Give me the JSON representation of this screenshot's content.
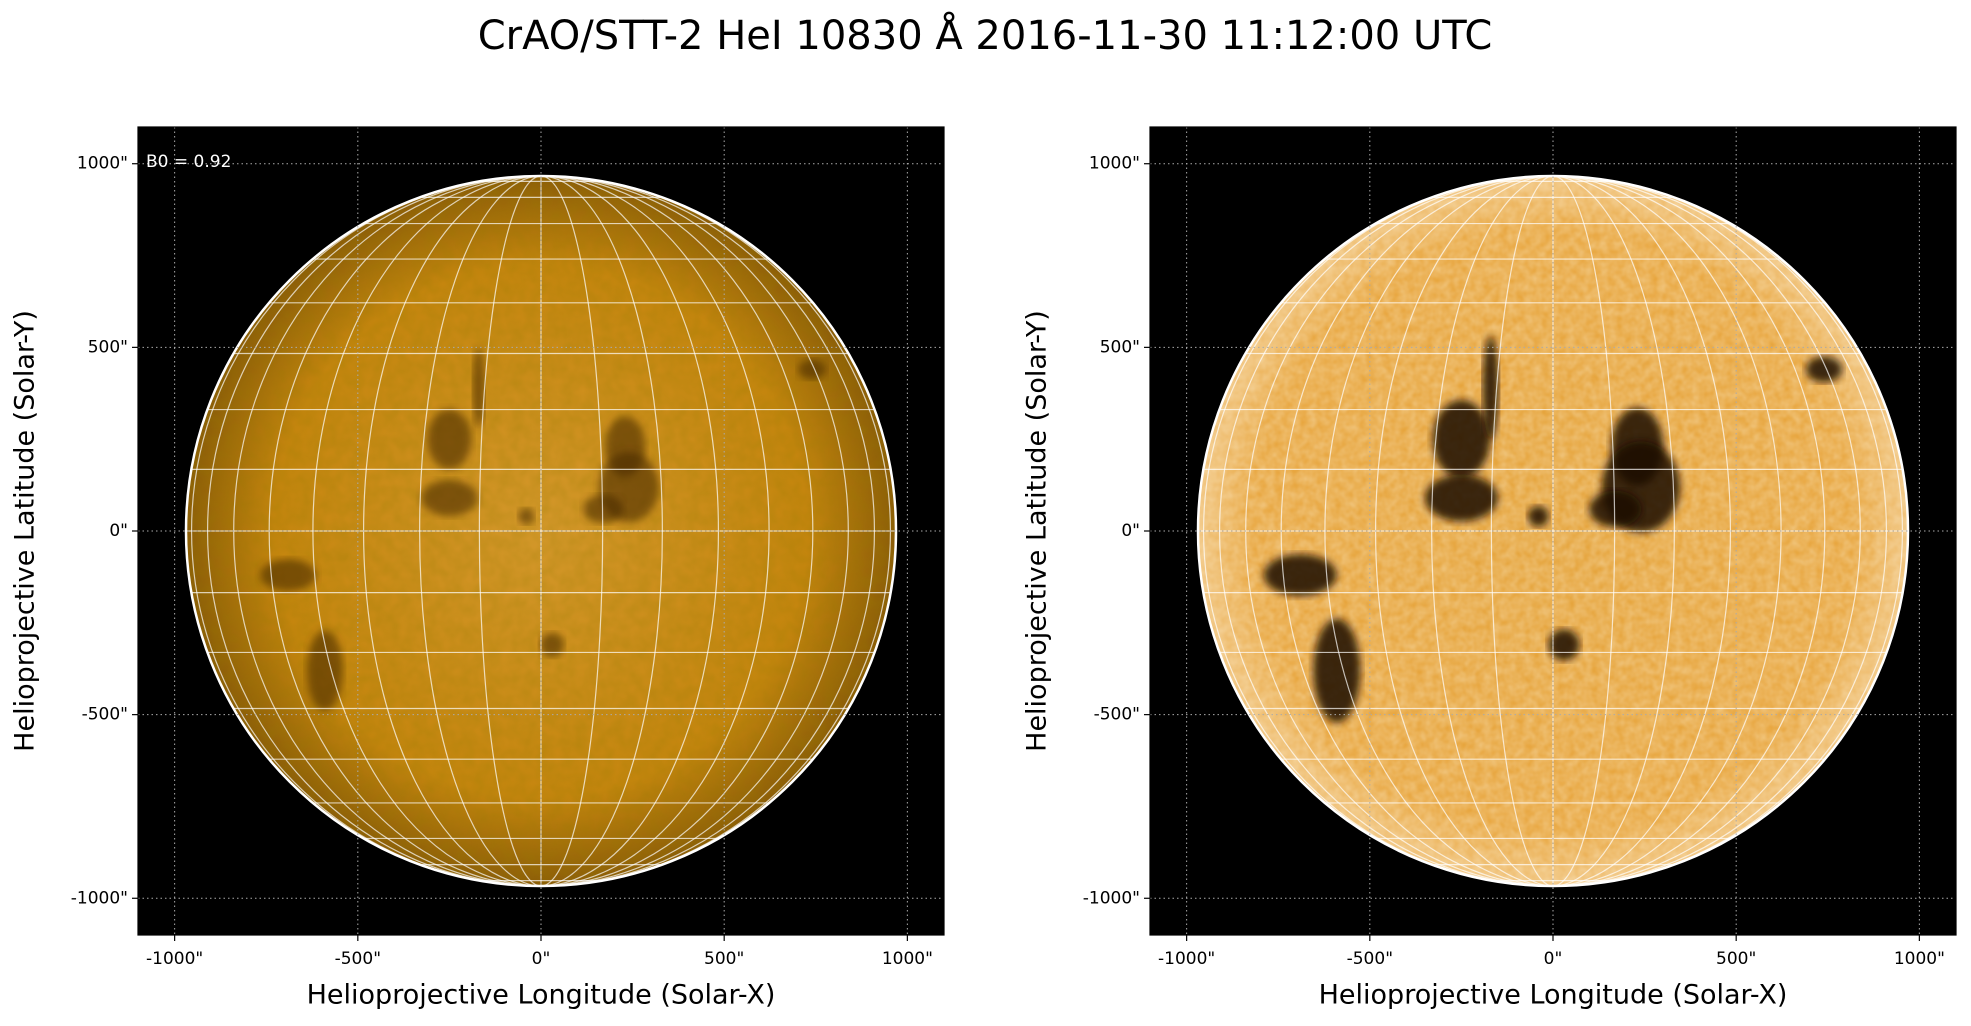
{
  "title": "CrAO/STT-2 HeI 10830 Å 2016-11-30 11:12:00 UTC",
  "chart_data": [
    {
      "type": "image",
      "xlabel": "Helioprojective Longitude (Solar-X)",
      "ylabel": "Helioprojective Latitude (Solar-Y)",
      "annotation": "B0 = 0.92",
      "solar_radius": 969,
      "xlim": [
        -1100,
        1100
      ],
      "ylim": [
        -1100,
        1100
      ],
      "xticks": [
        {
          "value": -1000,
          "label": "-1000\""
        },
        {
          "value": -500,
          "label": "-500\""
        },
        {
          "value": 0,
          "label": "0\""
        },
        {
          "value": 500,
          "label": "500\""
        },
        {
          "value": 1000,
          "label": "1000\""
        }
      ],
      "yticks": [
        {
          "value": -1000,
          "label": "-1000\""
        },
        {
          "value": -500,
          "label": "-500\""
        },
        {
          "value": 0,
          "label": "0\""
        },
        {
          "value": 500,
          "label": "500\""
        },
        {
          "value": 1000,
          "label": "1000\""
        }
      ],
      "grid": true
    },
    {
      "type": "image",
      "xlabel": "Helioprojective Longitude (Solar-X)",
      "ylabel": "Helioprojective Latitude (Solar-Y)",
      "solar_radius": 969,
      "xlim": [
        -1100,
        1100
      ],
      "ylim": [
        -1100,
        1100
      ],
      "xticks": [
        {
          "value": -1000,
          "label": "-1000\""
        },
        {
          "value": -500,
          "label": "-500\""
        },
        {
          "value": 0,
          "label": "0\""
        },
        {
          "value": 500,
          "label": "500\""
        },
        {
          "value": 1000,
          "label": "1000\""
        }
      ],
      "yticks": [
        {
          "value": -1000,
          "label": "-1000\""
        },
        {
          "value": -500,
          "label": "-500\""
        },
        {
          "value": 0,
          "label": "0\""
        },
        {
          "value": 500,
          "label": "500\""
        },
        {
          "value": 1000,
          "label": "1000\""
        }
      ],
      "grid": true
    }
  ]
}
